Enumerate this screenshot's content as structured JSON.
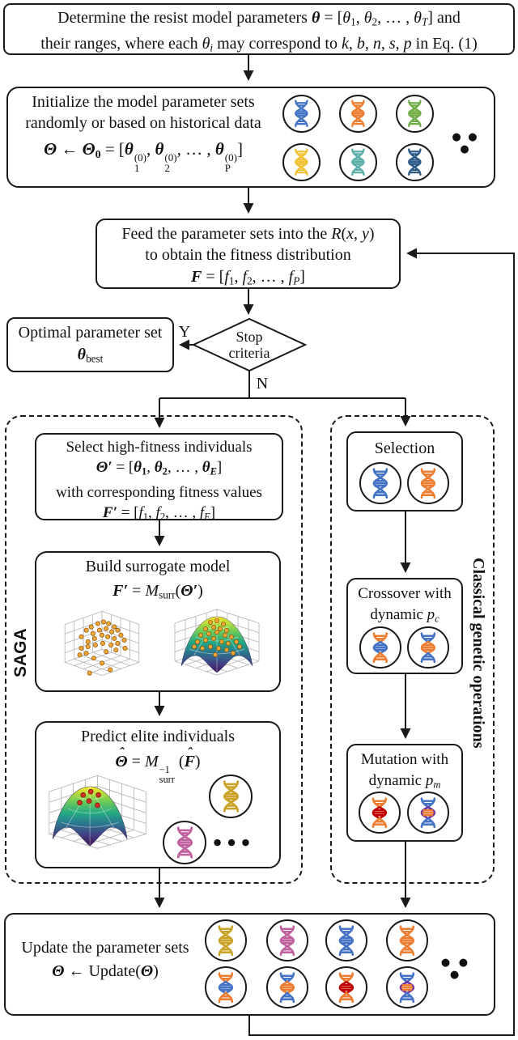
{
  "palette": {
    "blue": "#4472C4",
    "orange": "#ED7D31",
    "green": "#70AD47",
    "yellow": "#F1C232",
    "teal": "#5BAFA8",
    "navy": "#2C5985",
    "gold": "#C9A227",
    "magenta": "#C0609F",
    "red": "#C00000",
    "purple": "#7030A0",
    "line": "#1a1a1a",
    "dot_orange": "#F4A636",
    "dot_red": "#CF3126"
  },
  "determine": {
    "line1": [
      {
        "t": "Determine the resist model parameters "
      },
      {
        "t": "θ",
        "b": 1,
        "i": 1
      },
      {
        "t": " = ["
      },
      {
        "t": "θ",
        "i": 1
      },
      {
        "t": "1",
        "sub": 1
      },
      {
        "t": ", "
      },
      {
        "t": "θ",
        "i": 1
      },
      {
        "t": "2",
        "sub": 1
      },
      {
        "t": ", … , "
      },
      {
        "t": "θ",
        "i": 1
      },
      {
        "t": "T",
        "sub": 1,
        "i": 1
      },
      {
        "t": "] and"
      }
    ],
    "line2": [
      {
        "t": "their ranges, where each "
      },
      {
        "t": "θ",
        "i": 1
      },
      {
        "t": "i",
        "sub": 1,
        "i": 1
      },
      {
        "t": " may correspond to "
      },
      {
        "t": "k",
        "i": 1
      },
      {
        "t": ", "
      },
      {
        "t": "b",
        "i": 1
      },
      {
        "t": ", "
      },
      {
        "t": "n",
        "i": 1
      },
      {
        "t": ", "
      },
      {
        "t": "s",
        "i": 1
      },
      {
        "t": ", "
      },
      {
        "t": "p",
        "i": 1
      },
      {
        "t": " in Eq. (1)"
      }
    ]
  },
  "init": {
    "line1": "Initialize the model parameter sets",
    "line2": "randomly or based on historical data",
    "formula": [
      {
        "t": "Θ",
        "b": 1,
        "i": 1
      },
      {
        "t": " ← ",
        "b": 1
      },
      {
        "t": "Θ",
        "b": 1,
        "i": 1
      },
      {
        "t": "0",
        "sub": 1,
        "b": 1
      },
      {
        "t": " = ["
      },
      {
        "t": "θ",
        "b": 1,
        "i": 1
      },
      {
        "stack": {
          "sup": "(0)",
          "sub": "1"
        }
      },
      {
        "t": ", "
      },
      {
        "t": "θ",
        "b": 1,
        "i": 1
      },
      {
        "stack": {
          "sup": "(0)",
          "sub": "2"
        }
      },
      {
        "t": ", … , "
      },
      {
        "t": "θ",
        "b": 1,
        "i": 1
      },
      {
        "stack": {
          "sup": "(0)",
          "sub": "P"
        }
      },
      {
        "t": "]"
      }
    ],
    "dots": "● ● ●",
    "circles": [
      [
        "#4472C4"
      ],
      [
        "#ED7D31"
      ],
      [
        "#70AD47"
      ],
      [
        "#F1C232"
      ],
      [
        "#5BAFA8"
      ],
      [
        "#2C5985"
      ]
    ]
  },
  "feed": {
    "line1": [
      {
        "t": "Feed the parameter sets into the "
      },
      {
        "t": "R",
        "i": 1
      },
      {
        "t": "("
      },
      {
        "t": "x",
        "i": 1
      },
      {
        "t": ", "
      },
      {
        "t": "y",
        "i": 1
      },
      {
        "t": ")"
      }
    ],
    "line2": "to obtain the fitness distribution",
    "formula": [
      {
        "t": "F",
        "b": 1,
        "i": 1
      },
      {
        "t": " = ["
      },
      {
        "t": "f",
        "i": 1
      },
      {
        "t": "1",
        "sub": 1
      },
      {
        "t": ", "
      },
      {
        "t": "f",
        "i": 1
      },
      {
        "t": "2",
        "sub": 1
      },
      {
        "t": ", … , "
      },
      {
        "t": "f",
        "i": 1
      },
      {
        "t": "P",
        "sub": 1,
        "i": 1
      },
      {
        "t": "]"
      }
    ]
  },
  "decision": {
    "line1": "Stop",
    "line2": "criteria",
    "yes": "Y",
    "no": "N"
  },
  "optimal": {
    "line1": "Optimal parameter set",
    "formula": [
      {
        "t": "θ",
        "b": 1,
        "i": 1
      },
      {
        "t": "best",
        "sub": 1
      }
    ]
  },
  "saga": {
    "label": "SAGA",
    "select": {
      "line1": "Select high-fitness individuals",
      "formula1": [
        {
          "t": "Θ′",
          "b": 1,
          "i": 1
        },
        {
          "t": " = ["
        },
        {
          "t": "θ",
          "b": 1,
          "i": 1
        },
        {
          "t": "1",
          "sub": 1,
          "b": 1
        },
        {
          "t": ", "
        },
        {
          "t": "θ",
          "b": 1,
          "i": 1
        },
        {
          "t": "2",
          "sub": 1,
          "b": 1
        },
        {
          "t": ", … , "
        },
        {
          "t": "θ",
          "b": 1,
          "i": 1
        },
        {
          "t": "E",
          "sub": 1,
          "b": 1,
          "i": 1
        },
        {
          "t": "]"
        }
      ],
      "line3": "with corresponding fitness values",
      "formula2": [
        {
          "t": "F′",
          "b": 1,
          "i": 1
        },
        {
          "t": " = ["
        },
        {
          "t": "f",
          "i": 1
        },
        {
          "t": "1",
          "sub": 1
        },
        {
          "t": ", "
        },
        {
          "t": "f",
          "i": 1
        },
        {
          "t": "2",
          "sub": 1
        },
        {
          "t": ", … , "
        },
        {
          "t": "f",
          "i": 1
        },
        {
          "t": "E",
          "sub": 1,
          "i": 1
        },
        {
          "t": "]"
        }
      ]
    },
    "build": {
      "line1": "Build surrogate model",
      "formula": [
        {
          "t": "F′",
          "b": 1,
          "i": 1
        },
        {
          "t": " = "
        },
        {
          "t": "M",
          "i": 1
        },
        {
          "t": "surr",
          "sub": 1
        },
        {
          "t": "("
        },
        {
          "t": "Θ′",
          "b": 1,
          "i": 1
        },
        {
          "t": ")"
        }
      ]
    },
    "predict": {
      "line1": "Predict elite individuals",
      "formula": [
        {
          "t": "Θ",
          "b": 1,
          "i": 1,
          "hat": 1
        },
        {
          "t": " = "
        },
        {
          "t": "M",
          "i": 1
        },
        {
          "stack": {
            "sup": "−1",
            "sub": "surr"
          }
        },
        {
          "t": " ("
        },
        {
          "t": "F",
          "b": 1,
          "i": 1,
          "hat": 1
        },
        {
          "t": ")"
        }
      ],
      "dots": "● ● ●",
      "circles": [
        [
          "#C9A227"
        ],
        [
          "#C0609F"
        ]
      ]
    }
  },
  "classical": {
    "label": "Classical genetic operations",
    "selection": {
      "title": "Selection",
      "circles": [
        [
          "#4472C4"
        ],
        [
          "#ED7D31"
        ]
      ]
    },
    "crossover": {
      "line1": "Crossover with",
      "line2": [
        {
          "t": "dynamic "
        },
        {
          "t": "p",
          "i": 1
        },
        {
          "t": "c",
          "sub": 1,
          "i": 1
        }
      ],
      "circles": [
        [
          "#ED7D31",
          "#4472C4",
          "#ED7D31"
        ],
        [
          "#4472C4",
          "#ED7D31",
          "#4472C4"
        ]
      ]
    },
    "mutation": {
      "line1": "Mutation with",
      "line2": [
        {
          "t": "dynamic "
        },
        {
          "t": "p",
          "i": 1
        },
        {
          "t": "m",
          "sub": 1,
          "i": 1
        }
      ],
      "circles": [
        [
          "#ED7D31",
          "#C00000",
          "#ED7D31"
        ],
        [
          "#4472C4",
          "#7030A0",
          "#4472C4",
          "#ED7D31"
        ]
      ]
    }
  },
  "update": {
    "line1": "Update the parameter sets",
    "formula": [
      {
        "t": "Θ",
        "b": 1,
        "i": 1
      },
      {
        "t": " ← Update("
      },
      {
        "t": "Θ",
        "b": 1,
        "i": 1
      },
      {
        "t": ")"
      }
    ],
    "dots": "● ● ●",
    "circles": [
      [
        "#C9A227"
      ],
      [
        "#C0609F"
      ],
      [
        "#4472C4"
      ],
      [
        "#ED7D31"
      ],
      [
        "#ED7D31",
        "#4472C4",
        "#ED7D31"
      ],
      [
        "#4472C4",
        "#ED7D31",
        "#4472C4"
      ],
      [
        "#ED7D31",
        "#C00000",
        "#ED7D31"
      ],
      [
        "#4472C4",
        "#7030A0",
        "#4472C4",
        "#ED7D31"
      ]
    ]
  }
}
